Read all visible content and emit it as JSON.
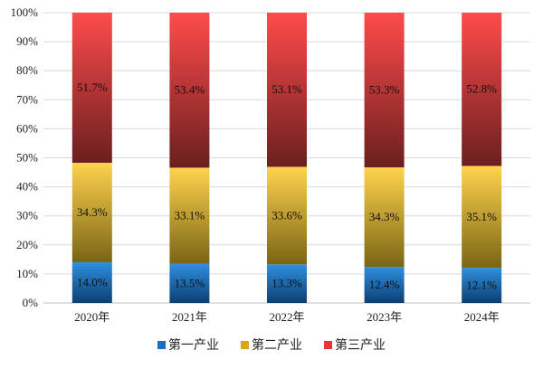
{
  "chart_data": {
    "type": "bar",
    "stacked": true,
    "percent_stacked": true,
    "categories": [
      "2020年",
      "2021年",
      "2022年",
      "2023年",
      "2024年"
    ],
    "ylim": [
      0,
      100
    ],
    "yticks": [
      0,
      10,
      20,
      30,
      40,
      50,
      60,
      70,
      80,
      90,
      100
    ],
    "ytick_labels": [
      "0%",
      "10%",
      "20%",
      "30%",
      "40%",
      "50%",
      "60%",
      "70%",
      "80%",
      "90%",
      "100%"
    ],
    "grid": true,
    "legend_position": "bottom",
    "series": [
      {
        "name": "第一产业",
        "values": [
          14.0,
          13.5,
          13.3,
          12.4,
          12.1
        ],
        "labels": [
          "14.0%",
          "13.5%",
          "13.3%",
          "12.4%",
          "12.1%"
        ],
        "color_top": "#2f8fde",
        "color_bottom": "#0b3f73",
        "legend_color": "#1f6fb8"
      },
      {
        "name": "第二产业",
        "values": [
          34.3,
          33.1,
          33.6,
          34.3,
          35.1
        ],
        "labels": [
          "34.3%",
          "33.1%",
          "33.6%",
          "34.3%",
          "35.1%"
        ],
        "color_top": "#ffd34d",
        "color_bottom": "#7a6515",
        "legend_color": "#d9a520"
      },
      {
        "name": "第三产业",
        "values": [
          51.7,
          53.4,
          53.1,
          53.3,
          52.8
        ],
        "labels": [
          "51.7%",
          "53.4%",
          "53.1%",
          "53.3%",
          "52.8%"
        ],
        "color_top": "#ff4b4b",
        "color_bottom": "#6b1f1f",
        "legend_color": "#e53535"
      }
    ]
  }
}
